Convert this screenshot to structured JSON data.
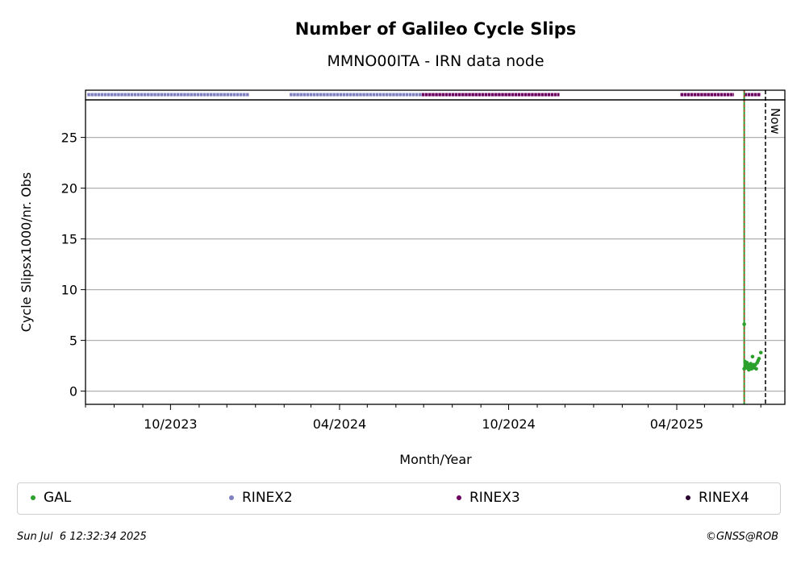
{
  "chart_data": {
    "type": "scatter",
    "title": "Number of Galileo Cycle Slips",
    "subtitle": "MMNO00ITA - IRN data node",
    "xlabel": "Month/Year",
    "ylabel": "Cycle Slipsx1000/nr. Obs",
    "xlim": [
      "2023-07-01",
      "2025-07-27"
    ],
    "ylim": [
      -1.3,
      28.7
    ],
    "yticks": [
      0,
      5,
      10,
      15,
      20,
      25
    ],
    "xticks": [
      {
        "date": "2023-10-01",
        "label": "10/2023"
      },
      {
        "date": "2024-04-01",
        "label": "04/2024"
      },
      {
        "date": "2024-10-01",
        "label": "10/2024"
      },
      {
        "date": "2025-04-01",
        "label": "04/2025"
      }
    ],
    "minor_xticks": [
      "2023-07-01",
      "2023-08-01",
      "2023-09-01",
      "2023-11-01",
      "2023-12-01",
      "2024-01-01",
      "2024-02-01",
      "2024-03-01",
      "2024-05-01",
      "2024-06-01",
      "2024-07-01",
      "2024-08-01",
      "2024-09-01",
      "2024-11-01",
      "2024-12-01",
      "2025-01-01",
      "2025-02-01",
      "2025-03-01",
      "2025-05-01",
      "2025-06-01",
      "2025-07-01"
    ],
    "grid": "y",
    "legend_placement": "bottom",
    "colors": {
      "GAL": "#2ca02c",
      "RINEX2": "#8080c0",
      "RINEX3": "#6b0060",
      "RINEX4": "#2a0030",
      "equipment_line": "#2ca02c",
      "marker_line": "#d62728"
    },
    "series": [
      {
        "name": "GAL",
        "points": [
          [
            "2025-06-13",
            6.6
          ],
          [
            "2025-06-13",
            2.2
          ],
          [
            "2025-06-14",
            2.9
          ],
          [
            "2025-06-14",
            2.4
          ],
          [
            "2025-06-15",
            2.6
          ],
          [
            "2025-06-15",
            2.3
          ],
          [
            "2025-06-16",
            2.8
          ],
          [
            "2025-06-17",
            2.4
          ],
          [
            "2025-06-18",
            2.1
          ],
          [
            "2025-06-18",
            2.6
          ],
          [
            "2025-06-19",
            2.3
          ],
          [
            "2025-06-20",
            2.7
          ],
          [
            "2025-06-20",
            2.5
          ],
          [
            "2025-06-21",
            2.2
          ],
          [
            "2025-06-22",
            3.4
          ],
          [
            "2025-06-22",
            2.4
          ],
          [
            "2025-06-23",
            2.6
          ],
          [
            "2025-06-24",
            2.3
          ],
          [
            "2025-06-25",
            2.6
          ],
          [
            "2025-06-26",
            2.2
          ],
          [
            "2025-06-27",
            2.8
          ],
          [
            "2025-06-28",
            3.0
          ],
          [
            "2025-06-29",
            3.2
          ],
          [
            "2025-07-01",
            3.8
          ]
        ]
      },
      {
        "name": "RINEX2",
        "ranges": [
          [
            "2023-07-03",
            "2023-12-25"
          ],
          [
            "2024-02-07",
            "2024-06-29"
          ]
        ]
      },
      {
        "name": "RINEX3",
        "ranges": [
          [
            "2024-06-29",
            "2024-11-25"
          ],
          [
            "2025-04-05",
            "2025-06-02"
          ],
          [
            "2025-06-13",
            "2025-07-01"
          ]
        ]
      },
      {
        "name": "RINEX4",
        "ranges": []
      }
    ],
    "vertical_lines": [
      {
        "date": "2025-06-13",
        "style": "equipment-change"
      },
      {
        "date": "2025-07-06",
        "style": "now",
        "label": "Now"
      }
    ]
  },
  "legend": [
    {
      "label": "GAL",
      "color": "#2ca02c"
    },
    {
      "label": "RINEX2",
      "color": "#8080c0"
    },
    {
      "label": "RINEX3",
      "color": "#6b0060"
    },
    {
      "label": "RINEX4",
      "color": "#2a0030"
    }
  ],
  "footer": {
    "timestamp": "Sun Jul  6 12:32:34 2025",
    "copyright": "©GNSS@ROB"
  }
}
